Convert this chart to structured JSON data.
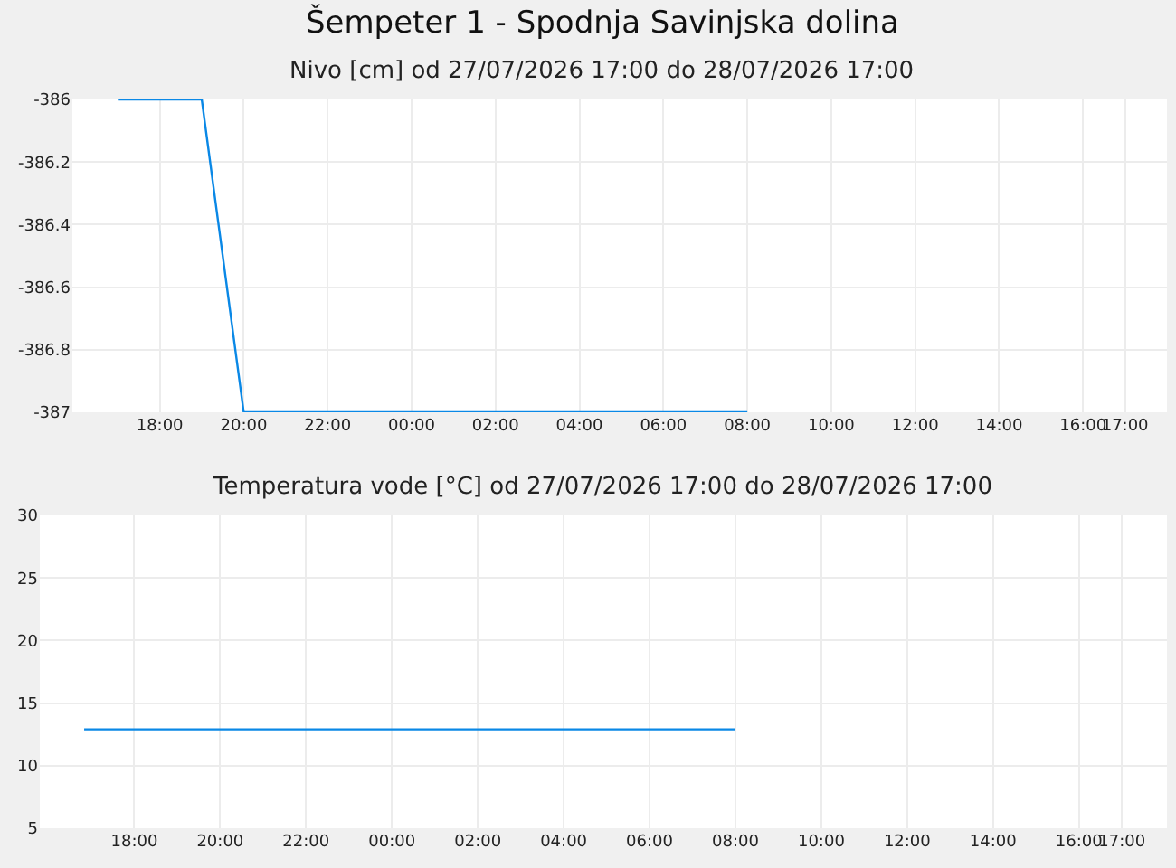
{
  "chart_data": [
    {
      "type": "line",
      "title": "Šempeter 1 - Spodnja Savinjska dolina",
      "subtitle": "Nivo [cm] od 27/07/2026 17:00 do 28/07/2026 17:00",
      "x": [
        "2026-07-27T17:00",
        "2026-07-27T19:00",
        "2026-07-27T20:00",
        "2026-07-28T08:00"
      ],
      "series": [
        {
          "color": "#0a88e6",
          "values": [
            -386,
            -386,
            -387,
            -387
          ]
        }
      ],
      "xlim": [
        "2026-07-27T15:55",
        "2026-07-28T18:00"
      ],
      "xticks": [
        {
          "value": "2026-07-27T18:00",
          "label": "18:00"
        },
        {
          "value": "2026-07-27T20:00",
          "label": "20:00"
        },
        {
          "value": "2026-07-27T22:00",
          "label": "22:00"
        },
        {
          "value": "2026-07-28T00:00",
          "label": "00:00"
        },
        {
          "value": "2026-07-28T02:00",
          "label": "02:00"
        },
        {
          "value": "2026-07-28T04:00",
          "label": "04:00"
        },
        {
          "value": "2026-07-28T06:00",
          "label": "06:00"
        },
        {
          "value": "2026-07-28T08:00",
          "label": "08:00"
        },
        {
          "value": "2026-07-28T10:00",
          "label": "10:00"
        },
        {
          "value": "2026-07-28T12:00",
          "label": "12:00"
        },
        {
          "value": "2026-07-28T14:00",
          "label": "14:00"
        },
        {
          "value": "2026-07-28T16:00",
          "label": "16:00"
        },
        {
          "value": "2026-07-28T17:00",
          "label": "17:00"
        }
      ],
      "ylim": [
        -387,
        -386
      ],
      "yticks": [
        -387,
        -386.8,
        -386.6,
        -386.4,
        -386.2,
        -386
      ],
      "grid": true,
      "marker": "none",
      "line_style": "solid"
    },
    {
      "type": "line",
      "title": "Temperatura vode [°C] od 27/07/2026 17:00 do 28/07/2026 17:00",
      "x": [
        "2026-07-27T16:50",
        "2026-07-28T08:00"
      ],
      "series": [
        {
          "color": "#0a88e6",
          "values": [
            12.9,
            12.9
          ]
        }
      ],
      "xlim": [
        "2026-07-27T15:48",
        "2026-07-28T18:03"
      ],
      "xticks": [
        {
          "value": "2026-07-27T18:00",
          "label": "18:00"
        },
        {
          "value": "2026-07-27T20:00",
          "label": "20:00"
        },
        {
          "value": "2026-07-27T22:00",
          "label": "22:00"
        },
        {
          "value": "2026-07-28T00:00",
          "label": "00:00"
        },
        {
          "value": "2026-07-28T02:00",
          "label": "02:00"
        },
        {
          "value": "2026-07-28T04:00",
          "label": "04:00"
        },
        {
          "value": "2026-07-28T06:00",
          "label": "06:00"
        },
        {
          "value": "2026-07-28T08:00",
          "label": "08:00"
        },
        {
          "value": "2026-07-28T10:00",
          "label": "10:00"
        },
        {
          "value": "2026-07-28T12:00",
          "label": "12:00"
        },
        {
          "value": "2026-07-28T14:00",
          "label": "14:00"
        },
        {
          "value": "2026-07-28T16:00",
          "label": "16:00"
        },
        {
          "value": "2026-07-28T17:00",
          "label": "17:00"
        }
      ],
      "ylim": [
        5,
        30
      ],
      "yticks": [
        5,
        10,
        15,
        20,
        25,
        30
      ],
      "grid": true,
      "marker": "none",
      "line_style": "solid"
    }
  ]
}
